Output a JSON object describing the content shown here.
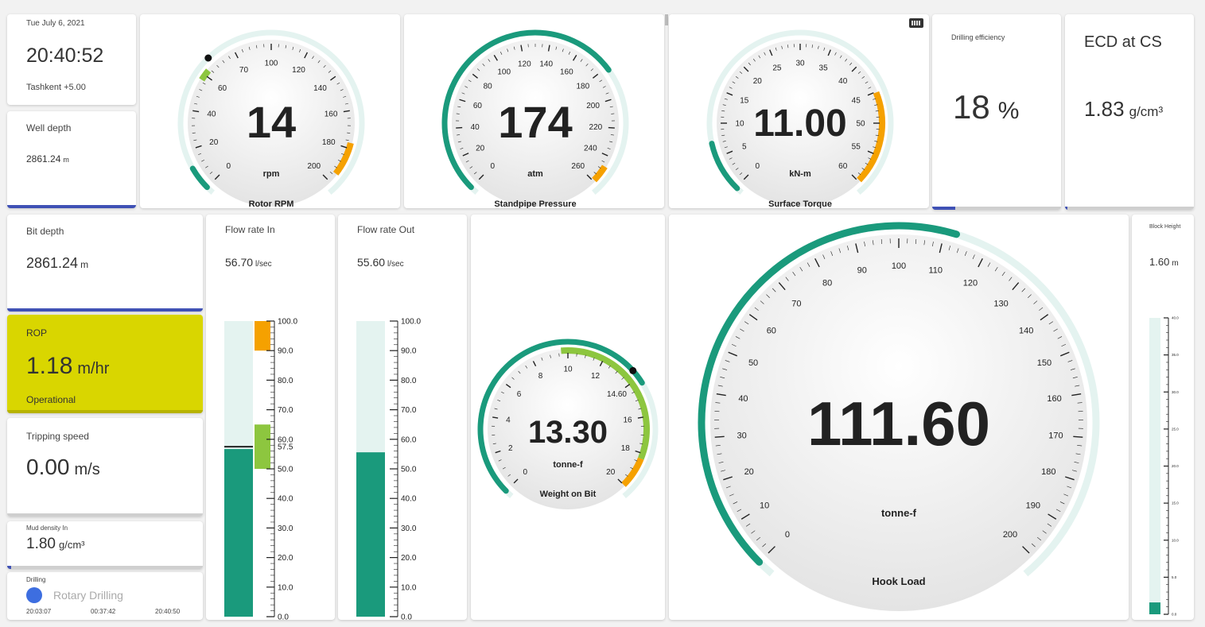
{
  "header": {
    "date": "Tue July 6, 2021",
    "time": "20:40:52",
    "timezone": "Tashkent +5.00"
  },
  "well_depth": {
    "label": "Well depth",
    "value": "2861.24",
    "unit": "m"
  },
  "bit_depth": {
    "label": "Bit depth",
    "value": "2861.24",
    "unit": "m"
  },
  "rop": {
    "label": "ROP",
    "value": "1.18",
    "unit": "m/hr",
    "status": "Operational",
    "color": "#d9d600"
  },
  "tripping_speed": {
    "label": "Tripping speed",
    "value": "0.00",
    "unit": "m/s"
  },
  "mud_density": {
    "label": "Mud density In",
    "value": "1.80",
    "unit": "g/cm³"
  },
  "drilling": {
    "label": "Drilling",
    "mode": "Rotary Drilling",
    "times": [
      "20:03:07",
      "00:37:42",
      "20:40:50"
    ],
    "indicator_color": "#3d6ee0"
  },
  "drilling_efficiency": {
    "label": "Drilling efficiency",
    "value": "18",
    "unit": "%"
  },
  "ecd": {
    "label": "ECD at CS",
    "value": "1.83",
    "unit": "g/cm³"
  },
  "flow_in": {
    "label": "Flow rate In",
    "value": "56.70",
    "unit": "l/sec",
    "level": 56.7,
    "ticks": [
      "100.0",
      "90.0",
      "80.0",
      "70.0",
      "60.0",
      "50.0",
      "40.0",
      "30.0",
      "20.0",
      "10.0",
      "0.0"
    ],
    "marker_label": "57.5"
  },
  "flow_out": {
    "label": "Flow rate Out",
    "value": "55.60",
    "unit": "l/sec",
    "level": 55.6,
    "ticks": [
      "100.0",
      "90.0",
      "80.0",
      "70.0",
      "60.0",
      "50.0",
      "40.0",
      "30.0",
      "20.0",
      "10.0",
      "0.0"
    ]
  },
  "block_height": {
    "label": "Block Height",
    "value": "1.60",
    "unit": "m",
    "level": 1.6,
    "ticks": [
      "40.0",
      "35.0",
      "30.0",
      "25.0",
      "20.0",
      "15.0",
      "10.0",
      "5.0",
      "0.0"
    ]
  },
  "gauges": {
    "rotor_rpm": {
      "title": "Rotor RPM",
      "value": "14",
      "unit": "rpm",
      "ticks": [
        "0",
        "20",
        "40",
        "60",
        "70",
        "100",
        "120",
        "140",
        "160",
        "180",
        "200"
      ]
    },
    "standpipe": {
      "title": "Standpipe Pressure",
      "value": "174",
      "unit": "atm",
      "ticks": [
        "0",
        "20",
        "40",
        "60",
        "80",
        "100",
        "120",
        "140",
        "160",
        "180",
        "200",
        "220",
        "240",
        "260"
      ]
    },
    "torque": {
      "title": "Surface Torque",
      "value": "11.00",
      "unit": "kN-m",
      "ticks": [
        "0",
        "5",
        "10",
        "15",
        "20",
        "25",
        "30",
        "35",
        "40",
        "45",
        "50",
        "55",
        "60"
      ]
    },
    "wob": {
      "title": "Weight on Bit",
      "value": "13.30",
      "unit": "tonne-f",
      "ticks": [
        "0",
        "2",
        "4",
        "6",
        "8",
        "10",
        "12",
        "14.60",
        "16",
        "18",
        "20"
      ]
    },
    "hook_load": {
      "title": "Hook Load",
      "value": "111.60",
      "unit": "tonne-f",
      "ticks": [
        "0",
        "10",
        "20",
        "30",
        "40",
        "50",
        "60",
        "70",
        "80",
        "90",
        "100",
        "110",
        "120",
        "130",
        "140",
        "150",
        "160",
        "170",
        "180",
        "190",
        "200"
      ]
    }
  },
  "colors": {
    "teal": "#1a9a7c",
    "track": "#e4f3f0",
    "green": "#8dc63f",
    "orange": "#f5a100",
    "accent_blue": "#3f51b5"
  }
}
